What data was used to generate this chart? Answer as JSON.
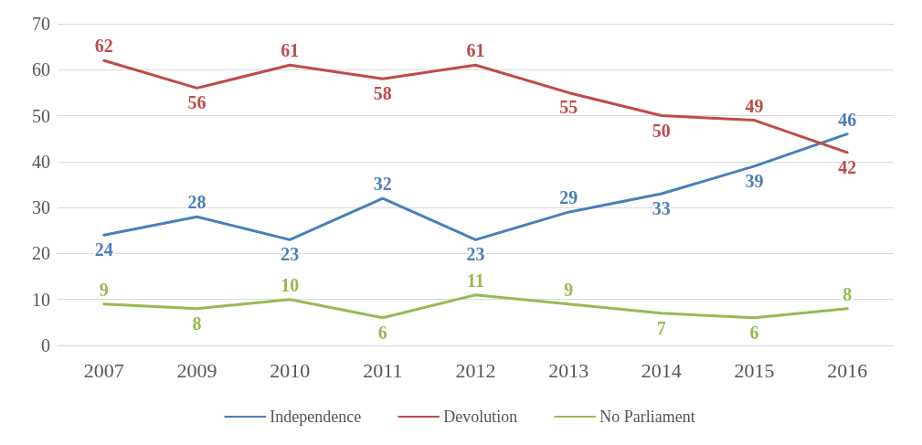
{
  "chart_data": {
    "type": "line",
    "categories": [
      "2007",
      "2009",
      "2010",
      "2011",
      "2012",
      "2013",
      "2014",
      "2015",
      "2016"
    ],
    "series": [
      {
        "name": "Independence",
        "color": "#4a7ebb",
        "values": [
          24,
          28,
          23,
          32,
          23,
          29,
          33,
          39,
          46
        ]
      },
      {
        "name": "Devolution",
        "color": "#be4b48",
        "values": [
          62,
          56,
          61,
          58,
          61,
          55,
          50,
          49,
          42
        ]
      },
      {
        "name": "No Parliament",
        "color": "#98b954",
        "values": [
          9,
          8,
          10,
          6,
          11,
          9,
          7,
          6,
          8
        ]
      }
    ],
    "ylim": [
      0,
      70
    ],
    "yticks": [
      0,
      10,
      20,
      30,
      40,
      50,
      60,
      70
    ],
    "grid": "y",
    "legend": "bottom",
    "data_labels": true,
    "marker": "none",
    "line_style": "solid"
  }
}
